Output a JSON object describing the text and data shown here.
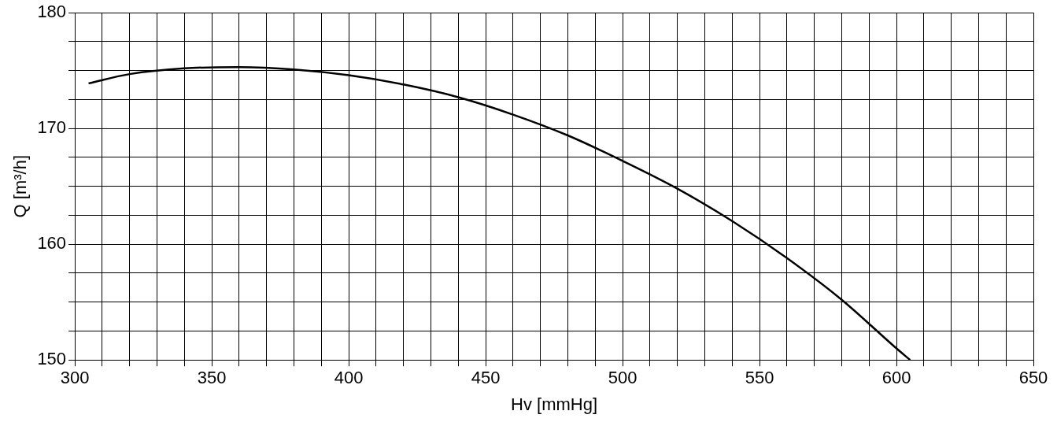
{
  "chart_data": {
    "type": "line",
    "xlabel": "Hv [mmHg]",
    "ylabel": "Q [m³/h]",
    "x": [
      305,
      320,
      340,
      360,
      380,
      400,
      420,
      440,
      460,
      480,
      500,
      520,
      540,
      560,
      580,
      600,
      605
    ],
    "series": [
      {
        "color": "#000000",
        "values": [
          173.9,
          174.7,
          175.2,
          175.3,
          175.1,
          174.6,
          173.8,
          172.7,
          171.2,
          169.4,
          167.2,
          164.8,
          162.0,
          158.8,
          155.2,
          151.0,
          150
        ]
      }
    ],
    "xlim": [
      300,
      650
    ],
    "xticks": [
      300,
      {
        "value": 310,
        "label": null
      },
      {
        "value": 320,
        "label": null
      },
      {
        "value": 330,
        "label": null
      },
      {
        "value": 340,
        "label": null
      },
      350,
      {
        "value": 360,
        "label": null
      },
      {
        "value": 370,
        "label": null
      },
      {
        "value": 380,
        "label": null
      },
      {
        "value": 390,
        "label": null
      },
      400,
      {
        "value": 410,
        "label": null
      },
      {
        "value": 420,
        "label": null
      },
      {
        "value": 430,
        "label": null
      },
      {
        "value": 440,
        "label": null
      },
      450,
      {
        "value": 460,
        "label": null
      },
      {
        "value": 470,
        "label": null
      },
      {
        "value": 480,
        "label": null
      },
      {
        "value": 490,
        "label": null
      },
      500,
      {
        "value": 510,
        "label": null
      },
      {
        "value": 520,
        "label": null
      },
      {
        "value": 530,
        "label": null
      },
      {
        "value": 540,
        "label": null
      },
      550,
      {
        "value": 560,
        "label": null
      },
      {
        "value": 570,
        "label": null
      },
      {
        "value": 580,
        "label": null
      },
      {
        "value": 590,
        "label": null
      },
      600,
      {
        "value": 610,
        "label": null
      },
      {
        "value": 620,
        "label": null
      },
      {
        "value": 630,
        "label": null
      },
      {
        "value": 640,
        "label": null
      },
      650
    ],
    "ylim": [
      150,
      180
    ],
    "yticks": [
      150,
      {
        "value": 152.5,
        "label": null
      },
      {
        "value": 155,
        "label": null
      },
      {
        "value": 157.5,
        "label": null
      },
      160,
      {
        "value": 162.5,
        "label": null
      },
      {
        "value": 165,
        "label": null
      },
      {
        "value": 167.5,
        "label": null
      },
      170,
      {
        "value": 172.5,
        "label": null
      },
      {
        "value": 175,
        "label": null
      },
      {
        "value": 177.5,
        "label": null
      },
      180
    ],
    "grid": true,
    "marker": "none",
    "line_style": "solid",
    "legend": false
  }
}
